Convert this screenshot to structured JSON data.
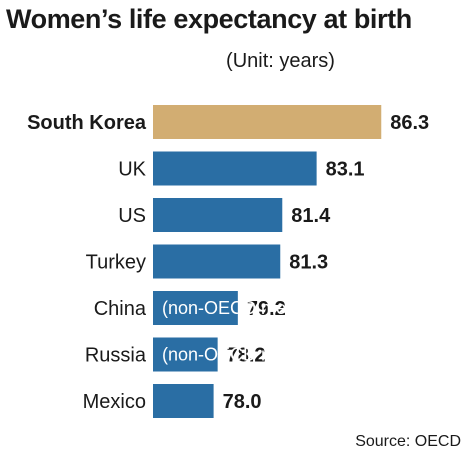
{
  "chart_data": {
    "type": "bar",
    "orientation": "horizontal",
    "title": "Women’s life expectancy at birth",
    "subtitle": "(Unit: years)",
    "source": "Source: OECD",
    "categories": [
      "South Korea",
      "UK",
      "US",
      "Turkey",
      "China",
      "Russia",
      "Mexico"
    ],
    "values": [
      86.3,
      83.1,
      81.4,
      81.3,
      79.2,
      78.2,
      78.0
    ],
    "value_labels": [
      "86.3",
      "83.1",
      "81.4",
      "81.3",
      "79.2",
      "78.2",
      "78.0"
    ],
    "notes": [
      "",
      "",
      "",
      "",
      "(non-OECD member)",
      "(non-OECD member)",
      ""
    ],
    "highlight_index": 0,
    "colors": {
      "highlight": "#d2ad72",
      "default": "#2a6ea4",
      "text": "#1a1a1a",
      "note_text": "#ffffff"
    },
    "grid": false,
    "legend": "none"
  }
}
